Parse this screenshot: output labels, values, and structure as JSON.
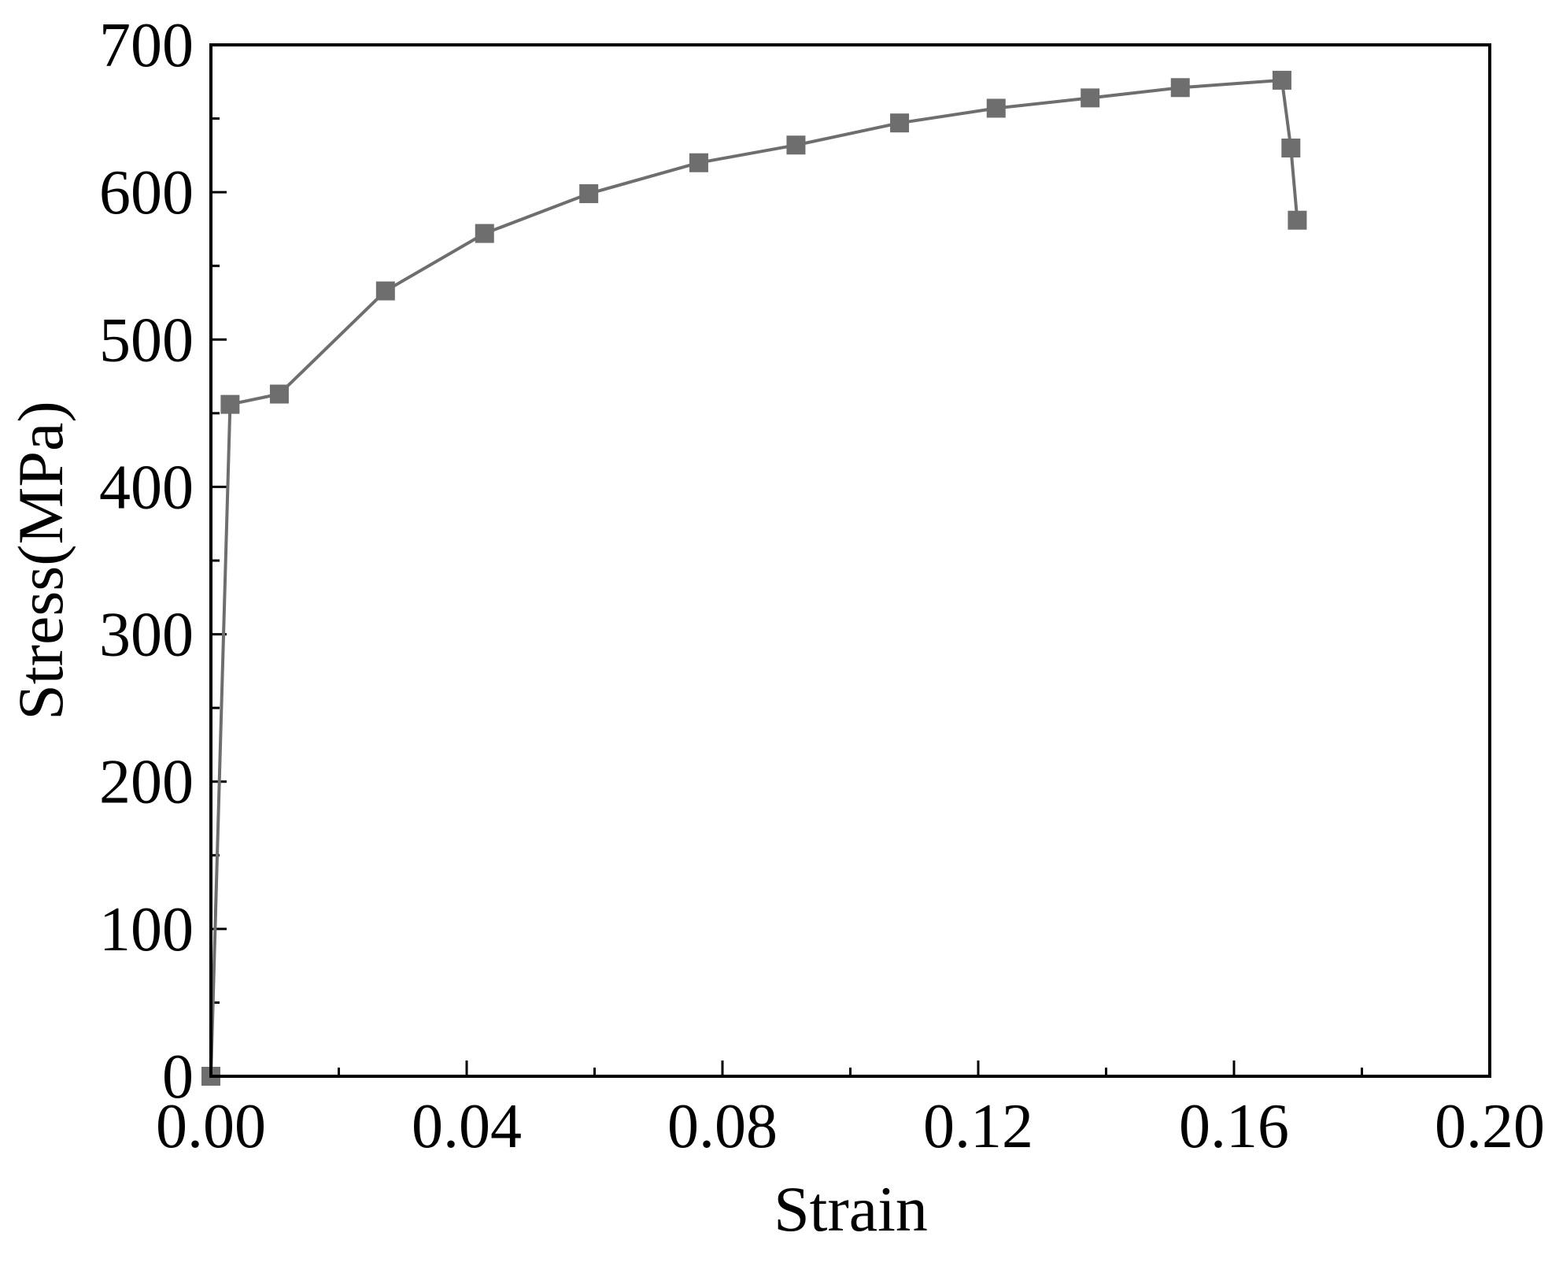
{
  "chart_data": {
    "type": "line",
    "xlabel": "Strain",
    "ylabel": "Stress(MPa)",
    "xlim": [
      0.0,
      0.2
    ],
    "ylim": [
      0,
      700
    ],
    "xticks": [
      "0.00",
      "0.04",
      "0.08",
      "0.12",
      "0.16",
      "0.20"
    ],
    "yticks": [
      "0",
      "100",
      "200",
      "300",
      "400",
      "500",
      "600",
      "700"
    ],
    "grid": false,
    "legend": false,
    "series": [
      {
        "marker": "square",
        "color": "#6e6e6e",
        "points": [
          {
            "x": 0.0,
            "y": 0
          },
          {
            "x": 0.003,
            "y": 456
          },
          {
            "x": 0.0107,
            "y": 463
          },
          {
            "x": 0.0273,
            "y": 533
          },
          {
            "x": 0.0428,
            "y": 572
          },
          {
            "x": 0.0591,
            "y": 599
          },
          {
            "x": 0.0763,
            "y": 620
          },
          {
            "x": 0.0915,
            "y": 632
          },
          {
            "x": 0.1077,
            "y": 647
          },
          {
            "x": 0.1228,
            "y": 657
          },
          {
            "x": 0.1375,
            "y": 664
          },
          {
            "x": 0.1516,
            "y": 671
          },
          {
            "x": 0.1675,
            "y": 676
          },
          {
            "x": 0.1689,
            "y": 630
          },
          {
            "x": 0.1699,
            "y": 581
          }
        ]
      }
    ]
  }
}
